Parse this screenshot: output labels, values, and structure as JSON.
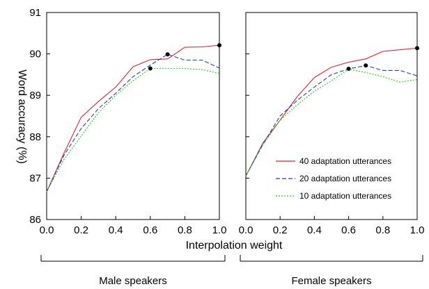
{
  "chart_data": {
    "type": "line",
    "ylabel": "Word accuracy (%)",
    "xlabel": "Interpolation weight",
    "ylim": [
      86,
      91
    ],
    "xlim": [
      0.0,
      1.0
    ],
    "xticks": [
      "0.0",
      "0.2",
      "0.4",
      "0.6",
      "0.8",
      "1.0"
    ],
    "yticks": [
      "86",
      "87",
      "88",
      "89",
      "90",
      "91"
    ],
    "legend": {
      "placement": "lower-right of right panel",
      "entries": [
        {
          "label": "40 adaptation utterances",
          "color": "#e8232a",
          "dash": "solid"
        },
        {
          "label": "20 adaptation utterances",
          "color": "#1f3fbf",
          "dash": "dashed"
        },
        {
          "label": "10 adaptation utterances",
          "color": "#22cc22",
          "dash": "dotted"
        }
      ]
    },
    "panels": [
      {
        "group_label": "Male speakers",
        "x": [
          0.0,
          0.1,
          0.2,
          0.3,
          0.4,
          0.5,
          0.6,
          0.7,
          0.8,
          0.9,
          1.0
        ],
        "series": [
          {
            "name": "40 adaptation utterances",
            "values": [
              86.67,
              87.6,
              88.47,
              88.85,
              89.2,
              89.69,
              89.86,
              89.88,
              90.16,
              90.17,
              90.21
            ]
          },
          {
            "name": "20 adaptation utterances",
            "values": [
              86.67,
              87.55,
              88.2,
              88.68,
              89.05,
              89.45,
              89.73,
              89.99,
              89.85,
              89.85,
              89.66
            ]
          },
          {
            "name": "10 adaptation utterances",
            "values": [
              86.67,
              87.45,
              88.02,
              88.58,
              89.0,
              89.35,
              89.65,
              89.65,
              89.65,
              89.62,
              89.53
            ]
          }
        ],
        "markers": [
          {
            "x": 0.6,
            "y": 89.65
          },
          {
            "x": 0.7,
            "y": 89.99
          },
          {
            "x": 1.0,
            "y": 90.21
          }
        ]
      },
      {
        "group_label": "Female speakers",
        "x": [
          0.0,
          0.1,
          0.2,
          0.3,
          0.4,
          0.5,
          0.6,
          0.7,
          0.8,
          0.9,
          1.0
        ],
        "series": [
          {
            "name": "40 adaptation utterances",
            "values": [
              87.05,
              87.85,
              88.4,
              88.97,
              89.43,
              89.68,
              89.8,
              89.88,
              90.06,
              90.1,
              90.14
            ]
          },
          {
            "name": "20 adaptation utterances",
            "values": [
              87.05,
              87.82,
              88.5,
              88.88,
              89.2,
              89.5,
              89.64,
              89.72,
              89.6,
              89.6,
              89.47
            ]
          },
          {
            "name": "10 adaptation utterances",
            "values": [
              87.05,
              87.8,
              88.4,
              88.77,
              89.1,
              89.35,
              89.63,
              89.55,
              89.45,
              89.32,
              89.38
            ]
          }
        ],
        "markers": [
          {
            "x": 0.6,
            "y": 89.64
          },
          {
            "x": 0.7,
            "y": 89.72
          },
          {
            "x": 1.0,
            "y": 90.14
          }
        ]
      }
    ]
  }
}
